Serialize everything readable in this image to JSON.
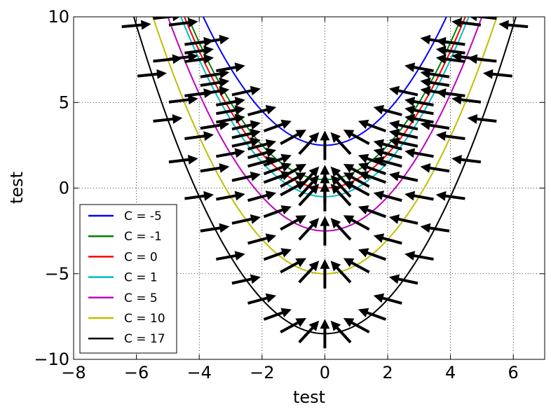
{
  "chart_data": {
    "type": "line",
    "title": "",
    "xlabel": "test",
    "ylabel": "test",
    "xlim": [
      -8,
      7
    ],
    "ylim": [
      -10,
      10
    ],
    "x_ticks": [
      -8,
      -6,
      -4,
      -2,
      0,
      2,
      4,
      6
    ],
    "y_ticks": [
      -10,
      -5,
      0,
      5,
      10
    ],
    "x_tick_labels": [
      "−8",
      "−6",
      "−4",
      "−2",
      "0",
      "2",
      "4",
      "6"
    ],
    "y_tick_labels": [
      "−10",
      "−5",
      "0",
      "5",
      "10"
    ],
    "grid": true,
    "legend_position": "lower-left",
    "curve_formula": "y = x^2/2 - C/2",
    "series": [
      {
        "name": "C = -5",
        "C": -5,
        "color": "#0000ff"
      },
      {
        "name": "C = -1",
        "C": -1,
        "color": "#008000"
      },
      {
        "name": "C = 0",
        "C": 0,
        "color": "#ff0000"
      },
      {
        "name": "C = 1",
        "C": 1,
        "color": "#00bfbf"
      },
      {
        "name": "C = 5",
        "C": 5,
        "color": "#bf00bf"
      },
      {
        "name": "C = 10",
        "C": 10,
        "color": "#bfbf00"
      },
      {
        "name": "C = 17",
        "C": 17,
        "color": "#000000"
      }
    ],
    "direction_field": {
      "color": "#000000",
      "levels": [
        -5,
        -1,
        0,
        1,
        5,
        10,
        17
      ],
      "arrow_x_samples": [
        -6.5,
        -6.0,
        -5.5,
        -5.0,
        -4.5,
        -4.0,
        -3.5,
        -3.0,
        -2.5,
        -2.0,
        -1.5,
        -1.0,
        -0.5,
        0,
        0.5,
        1.0,
        1.5,
        2.0,
        2.5,
        3.0,
        3.5,
        4.0,
        4.5,
        5.0,
        5.5,
        6.0,
        6.5
      ],
      "arrow_direction": "normal to curve"
    }
  }
}
